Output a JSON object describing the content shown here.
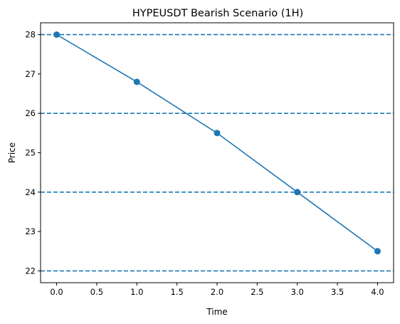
{
  "chart_data": {
    "type": "line",
    "title": "HYPEUSDT Bearish Scenario (1H)",
    "xlabel": "Time",
    "ylabel": "Price",
    "xlim": [
      -0.2,
      4.2
    ],
    "ylim": [
      21.7,
      28.3
    ],
    "xticks": [
      0.0,
      0.5,
      1.0,
      1.5,
      2.0,
      2.5,
      3.0,
      3.5,
      4.0
    ],
    "xtick_labels": [
      "0.0",
      "0.5",
      "1.0",
      "1.5",
      "2.0",
      "2.5",
      "3.0",
      "3.5",
      "4.0"
    ],
    "yticks": [
      22,
      23,
      24,
      25,
      26,
      27,
      28
    ],
    "ytick_labels": [
      "22",
      "23",
      "24",
      "25",
      "26",
      "27",
      "28"
    ],
    "grid": false,
    "series": [
      {
        "x": [
          0,
          1,
          2,
          3,
          4
        ],
        "values": [
          28.0,
          26.8,
          25.5,
          24.0,
          22.5
        ],
        "color": "#1f77b4",
        "marker": "circle"
      }
    ],
    "hlines": [
      {
        "y": 28,
        "color": "#1f77b4",
        "style": "dashed"
      },
      {
        "y": 26,
        "color": "#1f77b4",
        "style": "dashed"
      },
      {
        "y": 24,
        "color": "#1f77b4",
        "style": "dashed"
      },
      {
        "y": 22,
        "color": "#1f77b4",
        "style": "dashed"
      }
    ]
  }
}
